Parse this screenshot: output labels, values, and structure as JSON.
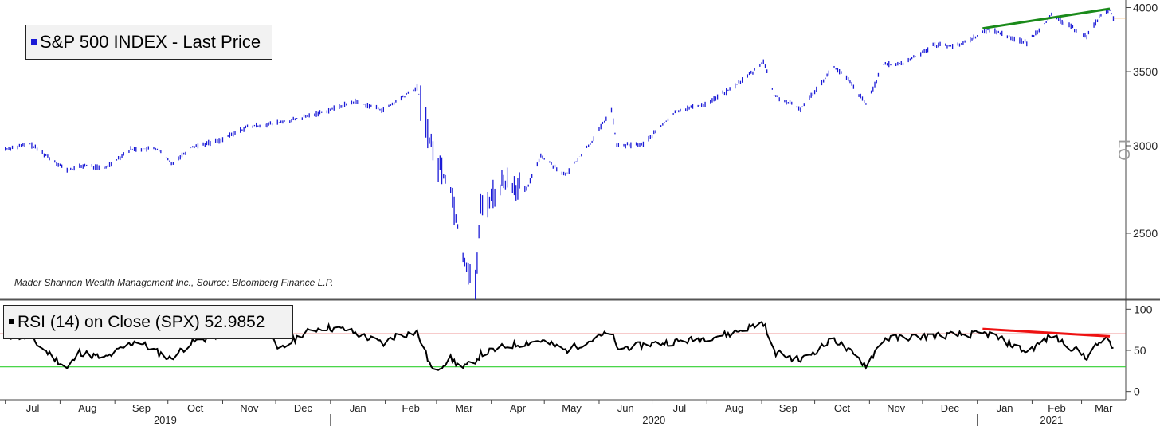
{
  "price_panel": {
    "legend_label": "S&P 500 INDEX - Last Price",
    "legend_color": "#1a1ad6",
    "credit": "Mader Shannon Wealth Management Inc., Source: Bloomberg Finance L.P.",
    "scale_label": "LO"
  },
  "rsi_panel": {
    "legend_label": "RSI (14)  on Close (SPX) 52.9852",
    "legend_color": "#000000"
  },
  "chart_data": [
    {
      "type": "line",
      "series": [
        {
          "name": "S&P 500 INDEX - Last Price",
          "color": "#1a1ad6",
          "x": [
            "2019-07-01",
            "2019-07-15",
            "2019-08-05",
            "2019-08-15",
            "2019-08-26",
            "2019-09-10",
            "2019-09-25",
            "2019-10-03",
            "2019-10-15",
            "2019-10-31",
            "2019-11-15",
            "2019-11-29",
            "2019-12-13",
            "2019-12-31",
            "2020-01-15",
            "2020-01-31",
            "2020-02-19",
            "2020-02-28",
            "2020-03-09",
            "2020-03-16",
            "2020-03-23",
            "2020-03-26",
            "2020-04-09",
            "2020-04-21",
            "2020-04-29",
            "2020-05-13",
            "2020-05-29",
            "2020-06-08",
            "2020-06-11",
            "2020-06-26",
            "2020-07-15",
            "2020-07-31",
            "2020-08-14",
            "2020-08-28",
            "2020-09-02",
            "2020-09-08",
            "2020-09-23",
            "2020-10-12",
            "2020-10-20",
            "2020-10-30",
            "2020-11-09",
            "2020-11-20",
            "2020-12-08",
            "2020-12-21",
            "2021-01-08",
            "2021-01-29",
            "2021-02-12",
            "2021-03-04",
            "2021-03-12",
            "2021-03-17",
            "2021-03-19"
          ],
          "y": [
            2980,
            3010,
            2850,
            2880,
            2860,
            2980,
            2980,
            2890,
            2995,
            3035,
            3120,
            3140,
            3170,
            3230,
            3290,
            3230,
            3386,
            2954,
            2746,
            2386,
            2237,
            2630,
            2790,
            2736,
            2940,
            2820,
            3044,
            3232,
            3000,
            3009,
            3226,
            3271,
            3372,
            3508,
            3580,
            3332,
            3237,
            3534,
            3440,
            3270,
            3550,
            3560,
            3702,
            3694,
            3824,
            3714,
            3934,
            3768,
            3943,
            3974,
            3913
          ]
        }
      ],
      "ylim": [
        2237,
        4010
      ],
      "y_scale": "log",
      "y_ticks": [
        2500,
        3000,
        3500,
        4000
      ],
      "trendline": {
        "color": "#1a8a1a",
        "x": [
          "2021-01-04",
          "2021-03-17"
        ],
        "y": [
          3830,
          3990
        ]
      },
      "last_price_line": {
        "color": "#f0a040",
        "y": 3913
      }
    },
    {
      "type": "line",
      "series": [
        {
          "name": "RSI (14)  on Close (SPX) 52.9852",
          "color": "#000000",
          "x": [
            "2019-07-01",
            "2019-07-15",
            "2019-08-05",
            "2019-08-12",
            "2019-08-26",
            "2019-09-13",
            "2019-10-02",
            "2019-10-15",
            "2019-11-01",
            "2019-11-15",
            "2019-11-29",
            "2019-12-02",
            "2019-12-16",
            "2019-12-27",
            "2020-01-10",
            "2020-01-31",
            "2020-02-07",
            "2020-02-19",
            "2020-02-28",
            "2020-03-09",
            "2020-03-16",
            "2020-03-23",
            "2020-03-26",
            "2020-04-09",
            "2020-04-29",
            "2020-05-13",
            "2020-06-08",
            "2020-06-11",
            "2020-07-01",
            "2020-07-22",
            "2020-08-14",
            "2020-09-02",
            "2020-09-08",
            "2020-09-23",
            "2020-10-12",
            "2020-10-30",
            "2020-11-09",
            "2020-12-08",
            "2021-01-08",
            "2021-01-29",
            "2021-02-12",
            "2021-03-04",
            "2021-03-12",
            "2021-03-17",
            "2021-03-19"
          ],
          "y": [
            68,
            65,
            28,
            48,
            40,
            62,
            40,
            60,
            70,
            75,
            72,
            48,
            70,
            78,
            75,
            58,
            68,
            72,
            24,
            40,
            28,
            38,
            45,
            55,
            62,
            50,
            72,
            52,
            58,
            62,
            70,
            84,
            48,
            38,
            64,
            32,
            64,
            68,
            70,
            48,
            68,
            42,
            62,
            62,
            52.9852
          ]
        }
      ],
      "ylim": [
        -10,
        110
      ],
      "y_ticks": [
        0,
        50,
        100
      ],
      "overbought": {
        "value": 70,
        "color": "#e03030"
      },
      "oversold": {
        "value": 30,
        "color": "#30d030"
      },
      "divergence_line": {
        "color": "#ee1111",
        "x": [
          "2021-01-04",
          "2021-03-17"
        ],
        "y": [
          76,
          67
        ]
      }
    }
  ],
  "x_axis": {
    "range": [
      "2019-06-28",
      "2021-03-26"
    ],
    "month_ticks": [
      {
        "date": "2019-07-01",
        "label": "Jul"
      },
      {
        "date": "2019-08-01",
        "label": "Aug"
      },
      {
        "date": "2019-09-01",
        "label": "Sep"
      },
      {
        "date": "2019-10-01",
        "label": "Oct"
      },
      {
        "date": "2019-11-01",
        "label": "Nov"
      },
      {
        "date": "2019-12-01",
        "label": "Dec"
      },
      {
        "date": "2020-01-01",
        "label": "Jan"
      },
      {
        "date": "2020-02-01",
        "label": "Feb"
      },
      {
        "date": "2020-03-01",
        "label": "Mar"
      },
      {
        "date": "2020-04-01",
        "label": "Apr"
      },
      {
        "date": "2020-05-01",
        "label": "May"
      },
      {
        "date": "2020-06-01",
        "label": "Jun"
      },
      {
        "date": "2020-07-01",
        "label": "Jul"
      },
      {
        "date": "2020-08-01",
        "label": "Aug"
      },
      {
        "date": "2020-09-01",
        "label": "Sep"
      },
      {
        "date": "2020-10-01",
        "label": "Oct"
      },
      {
        "date": "2020-11-01",
        "label": "Nov"
      },
      {
        "date": "2020-12-01",
        "label": "Dec"
      },
      {
        "date": "2021-01-01",
        "label": "Jan"
      },
      {
        "date": "2021-02-01",
        "label": "Feb"
      },
      {
        "date": "2021-03-01",
        "label": "Mar"
      }
    ],
    "year_labels": [
      {
        "start": "2019-06-28",
        "end": "2020-01-01",
        "label": "2019"
      },
      {
        "start": "2020-01-01",
        "end": "2021-01-01",
        "label": "2020"
      },
      {
        "start": "2021-01-01",
        "end": "2021-03-26",
        "label": "2021"
      }
    ]
  }
}
